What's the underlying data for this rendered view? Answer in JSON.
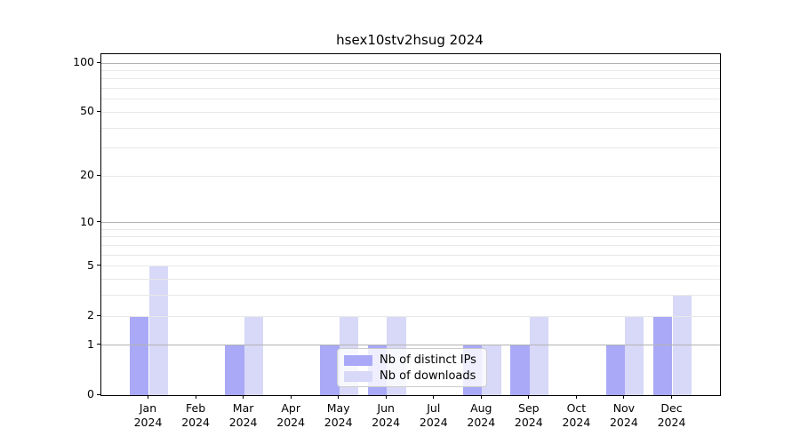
{
  "chart_data": {
    "type": "bar",
    "title": "hsex10stv2hsug 2024",
    "year": "2024",
    "categories": [
      "Jan",
      "Feb",
      "Mar",
      "Apr",
      "May",
      "Jun",
      "Jul",
      "Aug",
      "Sep",
      "Oct",
      "Nov",
      "Dec"
    ],
    "series": [
      {
        "name": "Nb of distinct IPs",
        "color": "#a9a9f7",
        "values": [
          2,
          0,
          1,
          0,
          1,
          1,
          0,
          1,
          1,
          0,
          1,
          2
        ]
      },
      {
        "name": "Nb of downloads",
        "color": "#d8d8f8",
        "values": [
          5,
          0,
          2,
          0,
          2,
          2,
          0,
          1,
          2,
          0,
          2,
          3
        ]
      }
    ],
    "y_ticks": [
      0,
      1,
      2,
      5,
      10,
      20,
      50,
      100
    ],
    "ylim": [
      0,
      100
    ],
    "y_scale": "log10(1+x)",
    "grid": {
      "major_lines": [
        1,
        10,
        100
      ],
      "minor_lines": [
        2,
        3,
        4,
        5,
        6,
        7,
        8,
        9,
        20,
        30,
        40,
        50,
        60,
        70,
        80,
        90
      ],
      "major_color": "#b3b3b3",
      "minor_color": "#e8e8e8"
    },
    "legend_position": "lower center",
    "axis_color": "#000000",
    "background_color": "#ffffff"
  }
}
